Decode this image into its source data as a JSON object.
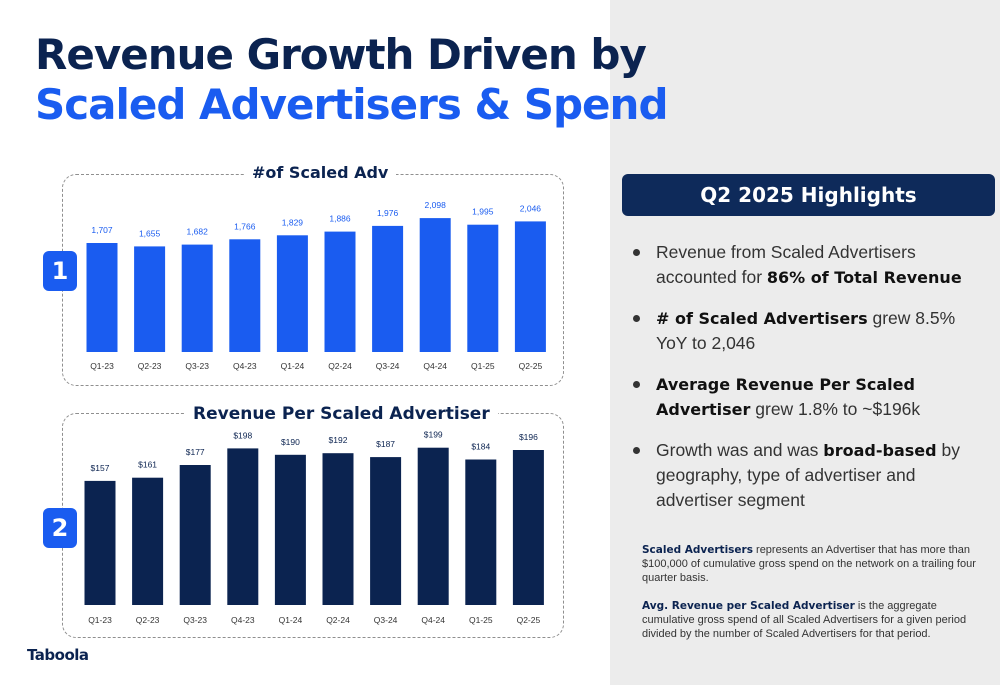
{
  "title": {
    "line1": "Revenue Growth Driven by",
    "line2": "Scaled Advertisers & Spend"
  },
  "chart_data": [
    {
      "type": "bar",
      "title": "#of Scaled Adv",
      "badge": "1",
      "categories": [
        "Q1-23",
        "Q2-23",
        "Q3-23",
        "Q4-23",
        "Q1-24",
        "Q2-24",
        "Q3-24",
        "Q4-24",
        "Q1-25",
        "Q2-25"
      ],
      "values": [
        1707,
        1655,
        1682,
        1766,
        1829,
        1886,
        1976,
        2098,
        1995,
        2046
      ],
      "labels": [
        "1,707",
        "1,655",
        "1,682",
        "1,766",
        "1,829",
        "1,886",
        "1,976",
        "2,098",
        "1,995",
        "2,046"
      ],
      "ylim": [
        0,
        2350
      ],
      "color": "#1a5cf0",
      "label_color": "#1a5cf0"
    },
    {
      "type": "bar",
      "title": "Revenue Per Scaled Advertiser",
      "badge": "2",
      "categories": [
        "Q1-23",
        "Q2-23",
        "Q3-23",
        "Q4-23",
        "Q1-24",
        "Q2-24",
        "Q3-24",
        "Q4-24",
        "Q1-25",
        "Q2-25"
      ],
      "values": [
        157,
        161,
        177,
        198,
        190,
        192,
        187,
        199,
        184,
        196
      ],
      "labels": [
        "$157",
        "$161",
        "$177",
        "$198",
        "$190",
        "$192",
        "$187",
        "$199",
        "$184",
        "$196"
      ],
      "ylim": [
        0,
        215
      ],
      "color": "#0b2350",
      "label_color": "#0b2350"
    }
  ],
  "highlights": {
    "header": "Q2 2025 Highlights",
    "bullets": [
      {
        "pre": "Revenue from Scaled Advertisers accounted for ",
        "bold": "86% of Total Revenue",
        "post": ""
      },
      {
        "pre": "",
        "bold": "# of Scaled Advertisers",
        "post": " grew 8.5% YoY to 2,046"
      },
      {
        "pre": "",
        "bold": "Average Revenue Per Scaled Advertiser",
        "post": " grew 1.8% to ~$196k"
      },
      {
        "pre": "Growth was and was ",
        "bold": "broad-based",
        "post": " by geography, type of advertiser and advertiser segment"
      }
    ]
  },
  "notes": [
    {
      "bold": "Scaled Advertisers",
      "text": " represents an Advertiser that has more than $100,000 of cumulative gross spend on the network on a trailing four quarter basis."
    },
    {
      "bold": "Avg. Revenue per Scaled Advertiser",
      "text": " is the aggregate cumulative gross spend of all Scaled Advertisers for a given period divided by the number of Scaled Advertisers for that period."
    }
  ],
  "logo": "Taboola"
}
